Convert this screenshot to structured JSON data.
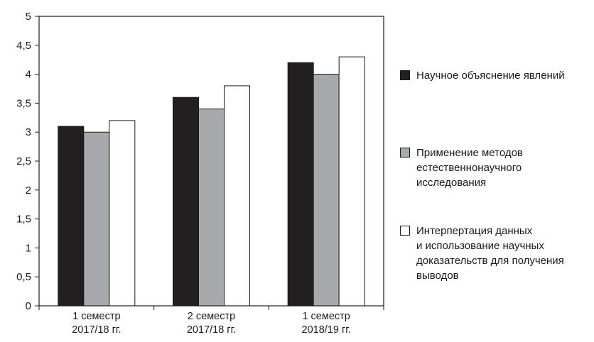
{
  "chart_data": {
    "type": "bar",
    "categories": [
      [
        "1 семестр",
        "2017/18 гг."
      ],
      [
        "2 семестр",
        "2017/18 гг."
      ],
      [
        "1 семестр",
        "2018/19 гг."
      ]
    ],
    "series": [
      {
        "name": "Научное объяснение явлений",
        "color": "#231f20",
        "values": [
          3.1,
          3.6,
          4.2
        ]
      },
      {
        "name": "Применение методов\nестественнонаучного\nисследования",
        "color": "#a7a9ac",
        "values": [
          3.0,
          3.4,
          4.0
        ]
      },
      {
        "name": "Интерпертация данных\n и использование научных\nдоказательств для получения\nвыводов",
        "color": "#ffffff",
        "values": [
          3.2,
          3.8,
          4.3
        ]
      }
    ],
    "ylim": [
      0,
      5
    ],
    "yticks": [
      "0",
      "0,5",
      "1",
      "1,5",
      "2",
      "2,5",
      "3",
      "3,5",
      "4",
      "4,5",
      "5"
    ],
    "grid": false,
    "legend": "right"
  }
}
